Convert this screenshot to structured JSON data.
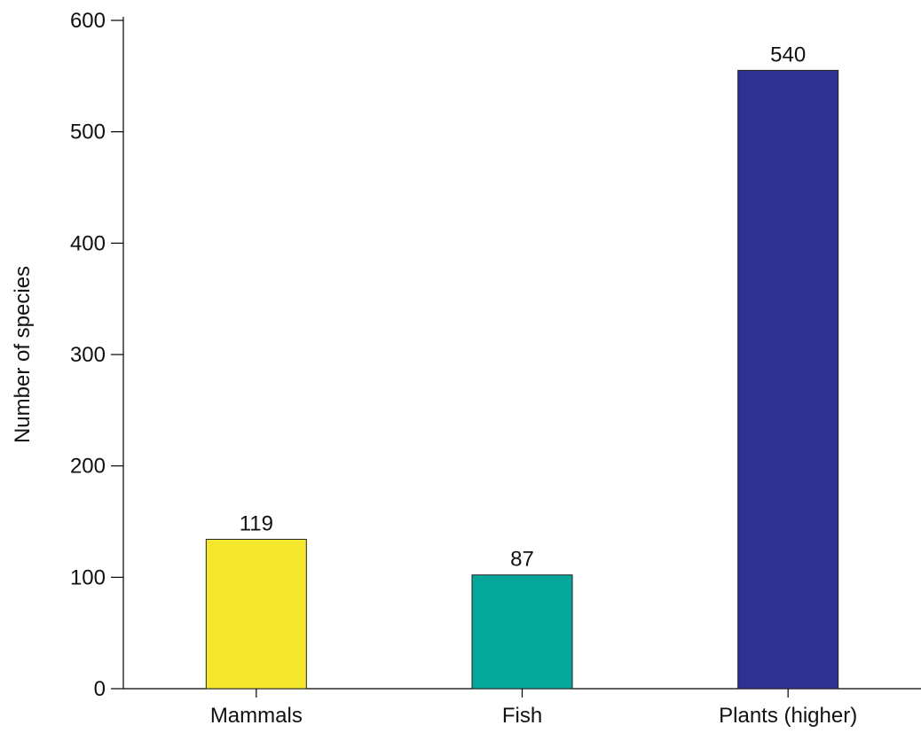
{
  "chart_data": {
    "type": "bar",
    "title": "",
    "xlabel": "",
    "ylabel": "Number of species",
    "ylim": [
      0,
      600
    ],
    "yticks": [
      0,
      100,
      200,
      300,
      400,
      500,
      600
    ],
    "grid": false,
    "categories": [
      "Mammals",
      "Fish",
      "Plants (higher)"
    ],
    "values": [
      119,
      87,
      540
    ],
    "value_labels": [
      "119",
      "87",
      "540"
    ],
    "colors": [
      "#f5e72e",
      "#05a79b",
      "#2e3092"
    ]
  }
}
